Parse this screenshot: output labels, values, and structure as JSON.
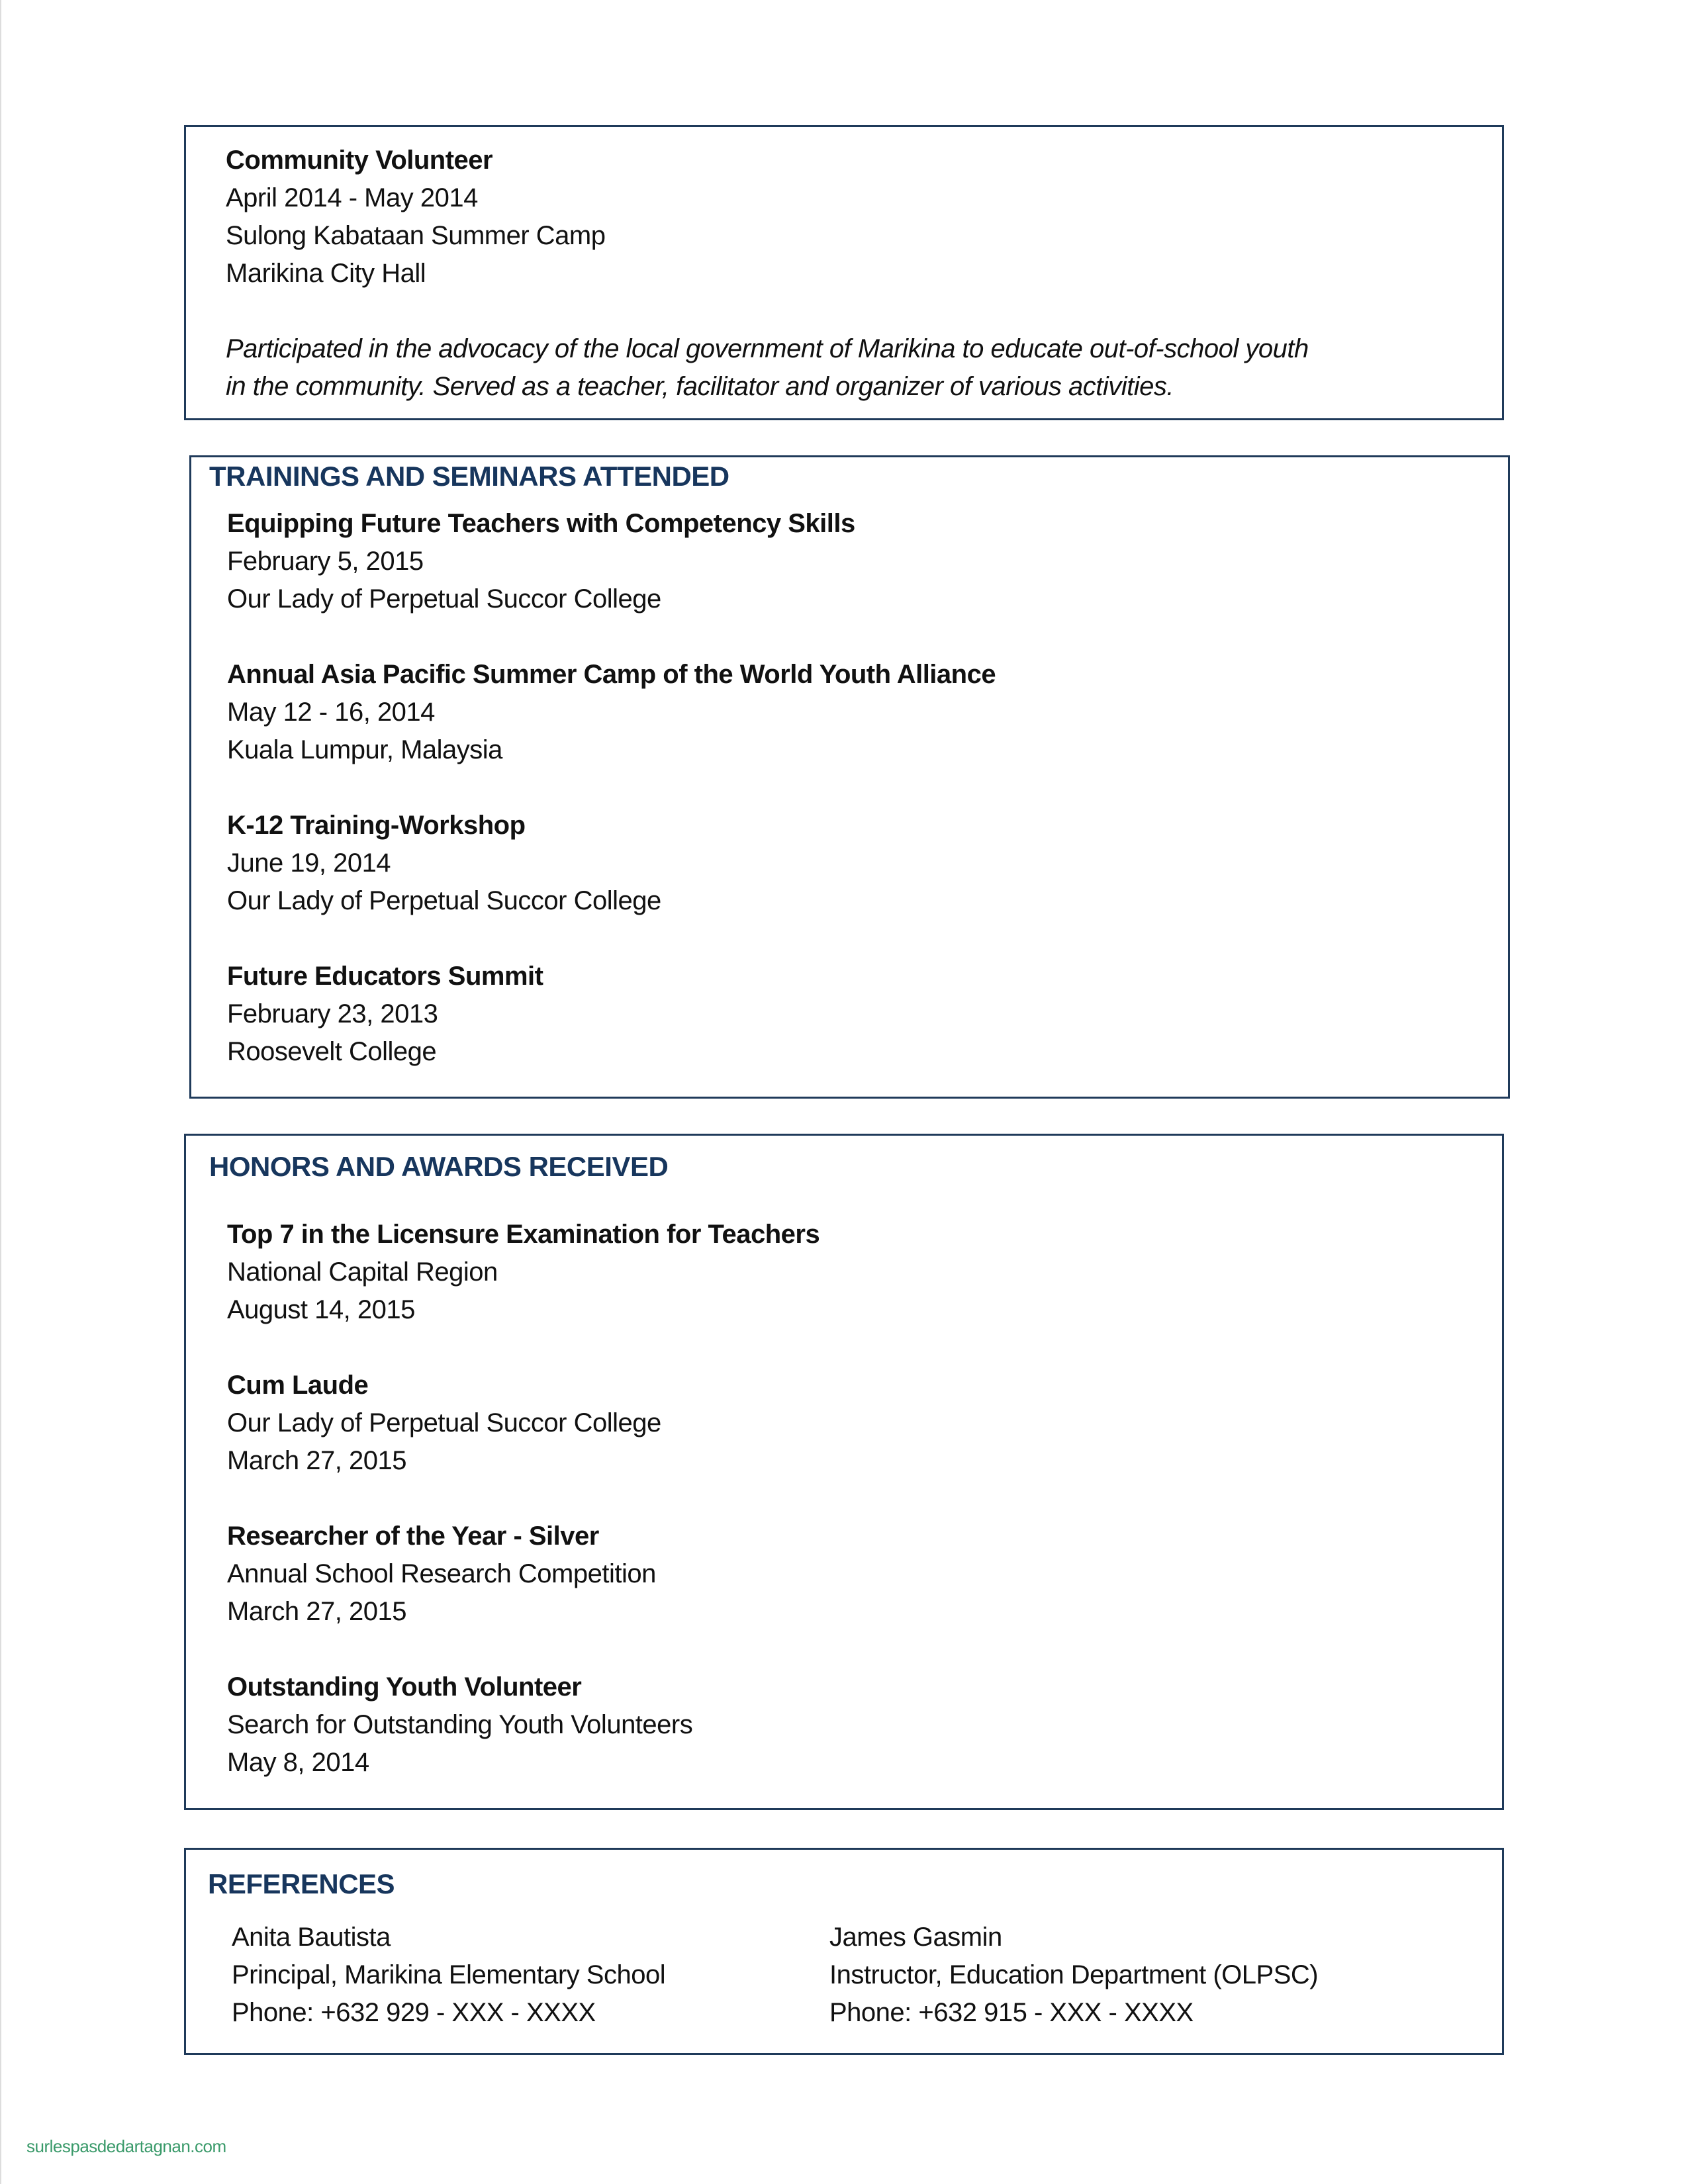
{
  "experience": {
    "title": "Community Volunteer",
    "dates": "April 2014 - May 2014",
    "program": "Sulong Kabataan Summer Camp",
    "location": "Marikina City Hall",
    "description": [
      "Participated in the advocacy of the local government of Marikina to educate out-of-school youth",
      "in the community. Served as a teacher, facilitator and organizer of various activities."
    ]
  },
  "trainings": {
    "heading": "TRAININGS AND SEMINARS ATTENDED",
    "items": [
      {
        "title": "Equipping Future Teachers with Competency Skills",
        "line2": "February 5, 2015",
        "line3": "Our Lady of Perpetual Succor College"
      },
      {
        "title": "Annual Asia Pacific Summer Camp of the World Youth Alliance",
        "line2": "May 12 - 16, 2014",
        "line3": "Kuala Lumpur, Malaysia"
      },
      {
        "title": "K-12 Training-Workshop",
        "line2": "June 19, 2014",
        "line3": "Our Lady of Perpetual Succor College"
      },
      {
        "title": "Future Educators Summit",
        "line2": "February 23, 2013",
        "line3": "Roosevelt College"
      }
    ]
  },
  "honors": {
    "heading": "HONORS AND AWARDS RECEIVED",
    "items": [
      {
        "title": "Top 7 in the Licensure Examination for Teachers",
        "line2": "National Capital Region",
        "line3": "August 14, 2015"
      },
      {
        "title": "Cum Laude",
        "line2": "Our Lady of Perpetual Succor College",
        "line3": "March 27, 2015"
      },
      {
        "title": "Researcher of the Year - Silver",
        "line2": "Annual School Research Competition",
        "line3": "March 27, 2015"
      },
      {
        "title": "Outstanding Youth Volunteer",
        "line2": "Search for Outstanding Youth Volunteers",
        "line3": "May 8, 2014"
      }
    ]
  },
  "references": {
    "heading": "REFERENCES",
    "items": [
      {
        "name": "Anita Bautista",
        "position": "Principal, Marikina Elementary School",
        "phone": "Phone: +632 929 - XXX - XXXX"
      },
      {
        "name": "James Gasmin",
        "position": "Instructor, Education Department (OLPSC)",
        "phone": "Phone: +632 915 - XXX - XXXX"
      }
    ]
  },
  "watermark": "surlespasdedartagnan.com",
  "colors": {
    "heading": "#17365d",
    "border": "#1f3a5a",
    "watermark": "#3a9a6a"
  }
}
